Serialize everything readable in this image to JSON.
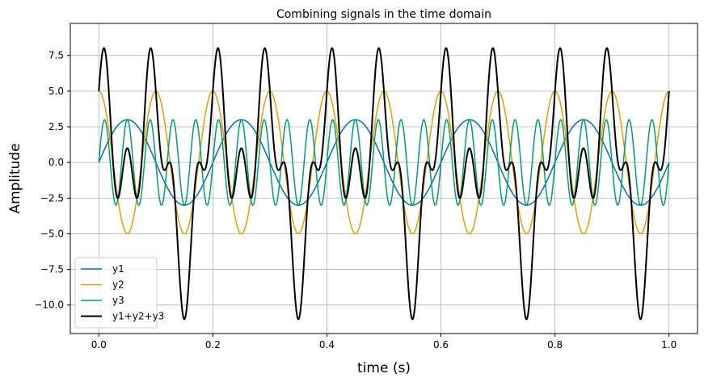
{
  "chart_data": {
    "type": "line",
    "title": "Combining signals in the time domain",
    "xlabel": "time (s)",
    "ylabel": "Amplitude",
    "xlim": [
      -0.05,
      1.05
    ],
    "ylim": [
      -12.0,
      9.75
    ],
    "grid": true,
    "legend_position": "lower-left",
    "xticks": [
      0.0,
      0.2,
      0.4,
      0.6,
      0.8,
      1.0
    ],
    "xtick_labels": [
      "0.0",
      "0.2",
      "0.4",
      "0.6",
      "0.8",
      "1.0"
    ],
    "yticks": [
      7.5,
      5.0,
      2.5,
      0.0,
      -2.5,
      -5.0,
      -7.5,
      -10.0
    ],
    "ytick_labels": [
      "7.5",
      "5.0",
      "2.5",
      "0.0",
      "−2.5",
      "−5.0",
      "−7.5",
      "−10.0"
    ],
    "x_range": [
      0,
      1
    ],
    "series": [
      {
        "name": "y1",
        "color": "#0072b2",
        "width": 1.5,
        "function": "sin",
        "amplitude": 3,
        "frequency": 5,
        "phase": 0
      },
      {
        "name": "y2",
        "color": "#e69f00",
        "width": 1.5,
        "function": "cos",
        "amplitude": 5,
        "frequency": 10,
        "phase": 0
      },
      {
        "name": "y3",
        "color": "#009e73",
        "width": 1.5,
        "function": "sin",
        "amplitude": 3,
        "frequency": 25,
        "phase": 0
      },
      {
        "name": "y1+y2+y3",
        "color": "#000000",
        "width": 2,
        "function": "sum",
        "components": [
          "y1",
          "y2",
          "y3"
        ]
      }
    ]
  }
}
